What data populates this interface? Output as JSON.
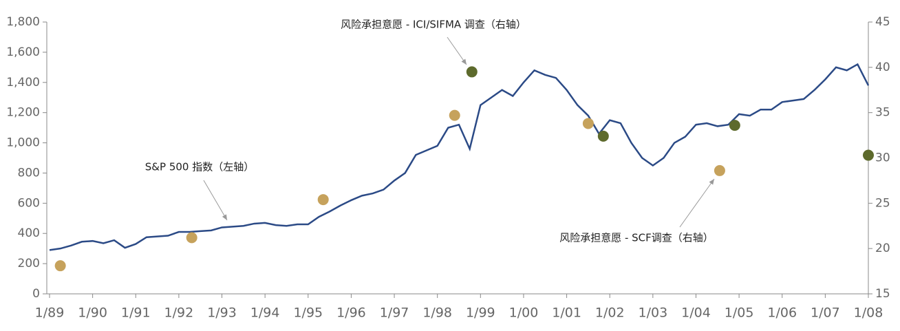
{
  "chart_data": {
    "type": "line",
    "x_is_numeric": true,
    "xlim": [
      1989,
      2008
    ],
    "xticks": [
      {
        "value": 1989,
        "label": "1/89"
      },
      {
        "value": 1990,
        "label": "1/90"
      },
      {
        "value": 1991,
        "label": "1/91"
      },
      {
        "value": 1992,
        "label": "1/92"
      },
      {
        "value": 1993,
        "label": "1/93"
      },
      {
        "value": 1994,
        "label": "1/94"
      },
      {
        "value": 1995,
        "label": "1/95"
      },
      {
        "value": 1996,
        "label": "1/96"
      },
      {
        "value": 1997,
        "label": "1/97"
      },
      {
        "value": 1998,
        "label": "1/98"
      },
      {
        "value": 1999,
        "label": "1/99"
      },
      {
        "value": 2000,
        "label": "1/00"
      },
      {
        "value": 2001,
        "label": "1/01"
      },
      {
        "value": 2002,
        "label": "1/02"
      },
      {
        "value": 2003,
        "label": "1/03"
      },
      {
        "value": 2004,
        "label": "1/04"
      },
      {
        "value": 2005,
        "label": "1/05"
      },
      {
        "value": 2006,
        "label": "1/06"
      },
      {
        "value": 2007,
        "label": "1/07"
      },
      {
        "value": 2008,
        "label": "1/08"
      }
    ],
    "ylim": [
      0,
      1800
    ],
    "yticks": [
      0,
      200,
      400,
      600,
      800,
      {
        "value": 1000,
        "label": "1,000"
      },
      {
        "value": 1200,
        "label": "1,200"
      },
      {
        "value": 1400,
        "label": "1,400"
      },
      {
        "value": 1600,
        "label": "1,600"
      },
      {
        "value": 1800,
        "label": "1,800"
      }
    ],
    "y2lim": [
      15,
      45
    ],
    "y2ticks": [
      15,
      20,
      25,
      30,
      35,
      40,
      45
    ],
    "grid": false,
    "series": [
      {
        "name": "S&P 500 指数（左轴）",
        "type": "line",
        "color": "#2b4a86",
        "x": [
          1989,
          1989.25,
          1989.5,
          1989.75,
          1990,
          1990.25,
          1990.5,
          1990.75,
          1991,
          1991.25,
          1991.5,
          1991.75,
          1992,
          1992.25,
          1992.5,
          1992.75,
          1993,
          1993.25,
          1993.5,
          1993.75,
          1994,
          1994.25,
          1994.5,
          1994.75,
          1995,
          1995.25,
          1995.5,
          1995.75,
          1996,
          1996.25,
          1996.5,
          1996.75,
          1997,
          1997.25,
          1997.5,
          1997.75,
          1998,
          1998.25,
          1998.5,
          1998.75,
          1999,
          1999.25,
          1999.5,
          1999.75,
          2000,
          2000.25,
          2000.5,
          2000.75,
          2001,
          2001.25,
          2001.5,
          2001.75,
          2002,
          2002.25,
          2002.5,
          2002.75,
          2003,
          2003.25,
          2003.5,
          2003.75,
          2004,
          2004.25,
          2004.5,
          2004.75,
          2005,
          2005.25,
          2005.5,
          2005.75,
          2006,
          2006.25,
          2006.5,
          2006.75,
          2007,
          2007.25,
          2007.5,
          2007.75,
          2008
        ],
        "values": [
          290,
          300,
          320,
          345,
          350,
          335,
          355,
          305,
          330,
          375,
          380,
          385,
          410,
          410,
          415,
          420,
          440,
          445,
          450,
          465,
          470,
          455,
          450,
          460,
          460,
          510,
          545,
          585,
          620,
          650,
          665,
          690,
          750,
          800,
          920,
          950,
          980,
          1100,
          1120,
          960,
          1250,
          1300,
          1350,
          1310,
          1400,
          1480,
          1450,
          1430,
          1350,
          1250,
          1180,
          1060,
          1150,
          1130,
          1000,
          900,
          850,
          900,
          1000,
          1040,
          1120,
          1130,
          1110,
          1120,
          1190,
          1180,
          1220,
          1220,
          1270,
          1280,
          1290,
          1350,
          1420,
          1500,
          1480,
          1520,
          1380
        ]
      },
      {
        "name": "风险承担意愿 - SCF调查（右轴）",
        "type": "scatter",
        "axis": "y2",
        "color": "#c6a25c",
        "x": [
          1989.25,
          1992.3,
          1995.35,
          1998.4,
          2001.5,
          2004.55
        ],
        "values": [
          18.1,
          21.2,
          25.4,
          34.7,
          33.8,
          28.6
        ]
      },
      {
        "name": "风险承担意愿 - ICI/SIFMA 调查（右轴）",
        "type": "scatter",
        "axis": "y2",
        "color": "#5d6a2c",
        "x": [
          1998.8,
          2001.85,
          2004.9,
          2008
        ],
        "values": [
          39.5,
          32.4,
          33.6,
          30.3
        ]
      }
    ]
  }
}
